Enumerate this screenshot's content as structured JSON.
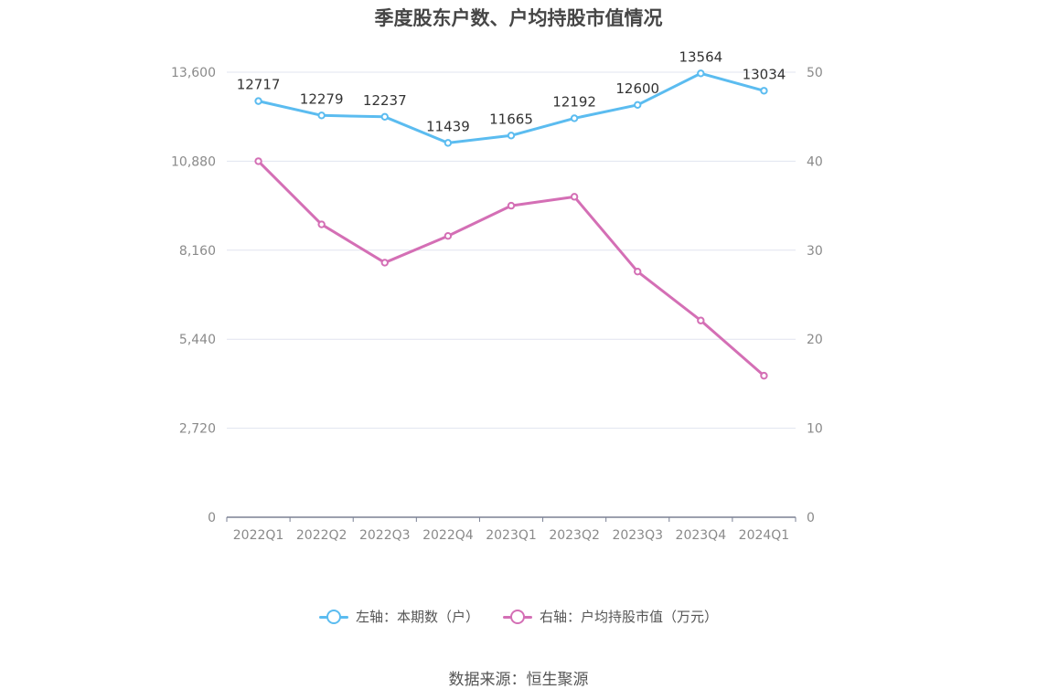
{
  "chart_data": {
    "type": "line",
    "title": "季度股东户数、户均持股市值情况",
    "categories": [
      "2022Q1",
      "2022Q2",
      "2022Q3",
      "2022Q4",
      "2023Q1",
      "2023Q2",
      "2023Q3",
      "2023Q4",
      "2024Q1"
    ],
    "left_axis": {
      "ticks": [
        "0",
        "2,720",
        "5,440",
        "8,160",
        "10,880",
        "13,600"
      ],
      "ylim": [
        0,
        13600
      ]
    },
    "right_axis": {
      "ticks": [
        "0",
        "10",
        "20",
        "30",
        "40",
        "50"
      ],
      "ylim": [
        0,
        50
      ]
    },
    "series": [
      {
        "name": "左轴：本期数（户）",
        "axis": "left",
        "color": "#5bbcf0",
        "values": [
          12717,
          12279,
          12237,
          11439,
          11665,
          12192,
          12600,
          13564,
          13034
        ],
        "labels": [
          "12717",
          "12279",
          "12237",
          "11439",
          "11665",
          "12192",
          "12600",
          "13564",
          "13034"
        ]
      },
      {
        "name": "右轴：户均持股市值（万元）",
        "axis": "right",
        "color": "#d46fb5",
        "values": [
          40.0,
          32.9,
          28.6,
          31.6,
          35.0,
          36.0,
          27.6,
          22.1,
          15.9
        ]
      }
    ],
    "grid": true,
    "legend_position": "bottom-center"
  },
  "source": "数据来源：恒生聚源"
}
